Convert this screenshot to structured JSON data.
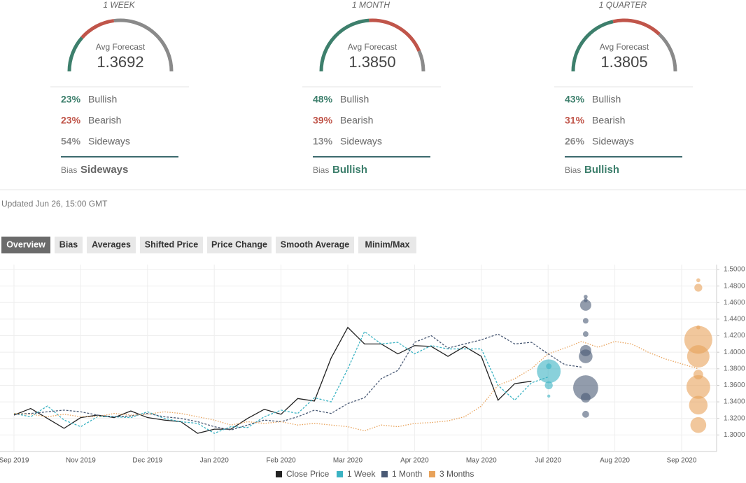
{
  "cards": [
    {
      "period": "1 WEEK",
      "avg_label": "Avg Forecast",
      "avg": "1.3692",
      "labels": [
        "Bullish",
        "Bearish",
        "Sideways"
      ],
      "values": [
        23,
        23,
        54
      ],
      "value_labels": [
        "23%",
        "23%",
        "54%"
      ],
      "colors": [
        "#3d7f6c",
        "#c0554a",
        "#8a8a8a"
      ],
      "bias_label": "Bias",
      "bias": "Sideways"
    },
    {
      "period": "1 MONTH",
      "avg_label": "Avg Forecast",
      "avg": "1.3850",
      "labels": [
        "Bullish",
        "Bearish",
        "Sideways"
      ],
      "values": [
        48,
        39,
        13
      ],
      "value_labels": [
        "48%",
        "39%",
        "13%"
      ],
      "colors": [
        "#3d7f6c",
        "#c0554a",
        "#8a8a8a"
      ],
      "bias_label": "Bias",
      "bias": "Bullish"
    },
    {
      "period": "1 QUARTER",
      "avg_label": "Avg Forecast",
      "avg": "1.3805",
      "labels": [
        "Bullish",
        "Bearish",
        "Sideways"
      ],
      "values": [
        43,
        31,
        26
      ],
      "value_labels": [
        "43%",
        "31%",
        "26%"
      ],
      "colors": [
        "#3d7f6c",
        "#c0554a",
        "#8a8a8a"
      ],
      "bias_label": "Bias",
      "bias": "Bullish"
    }
  ],
  "updated": "Updated Jun 26, 15:00 GMT",
  "tabs": [
    "Overview",
    "Bias",
    "Averages",
    "Shifted Price",
    "Price Change",
    "Smooth Average",
    "Minim/Max"
  ],
  "active_tab": 0,
  "chart_data": {
    "type": "line",
    "categories": [
      "Sep 2019",
      null,
      null,
      null,
      "Nov 2019",
      null,
      null,
      null,
      "Dec 2019",
      null,
      null,
      null,
      "Jan 2020",
      null,
      null,
      null,
      "Feb 2020",
      null,
      null,
      null,
      "Mar 2020",
      null,
      null,
      null,
      "Apr 2020",
      null,
      null,
      null,
      "May 2020",
      null,
      null,
      null,
      "Jul 2020",
      null,
      null,
      null,
      "Aug 2020",
      null,
      null,
      null,
      "Sep 2020",
      null,
      null
    ],
    "ylim": [
      1.28,
      1.5
    ],
    "yticks": [
      {
        "value": 1.3,
        "label": "1.3000"
      },
      {
        "value": 1.32,
        "label": "1.3200"
      },
      {
        "value": 1.34,
        "label": "1.3400"
      },
      {
        "value": 1.36,
        "label": "1.3600"
      },
      {
        "value": 1.38,
        "label": "1.3800"
      },
      {
        "value": 1.4,
        "label": "1.4000"
      },
      {
        "value": 1.42,
        "label": "1.4200"
      },
      {
        "value": 1.44,
        "label": "1.4400"
      },
      {
        "value": 1.46,
        "label": "1.4600"
      },
      {
        "value": 1.48,
        "label": "1.4800"
      },
      {
        "value": 1.5,
        "label": "1.5000"
      }
    ],
    "grid": true,
    "series": [
      {
        "name": "Close Price",
        "color": "#222222",
        "line_style": "solid",
        "values": [
          1.324,
          1.332,
          1.32,
          1.308,
          1.321,
          1.324,
          1.321,
          1.329,
          1.321,
          1.318,
          1.316,
          1.302,
          1.307,
          1.307,
          1.32,
          1.331,
          1.325,
          1.344,
          1.341,
          1.393,
          1.43,
          1.41,
          1.41,
          1.398,
          1.408,
          1.407,
          1.395,
          1.407,
          1.395,
          1.342,
          1.362,
          1.365,
          null,
          null,
          null,
          null,
          null,
          null,
          null,
          null,
          null,
          null,
          null
        ]
      },
      {
        "name": "1 Week",
        "color": "#3bb3c3",
        "line_style": "dashed",
        "values": [
          1.326,
          1.322,
          1.335,
          1.318,
          1.31,
          1.322,
          1.322,
          1.321,
          1.328,
          1.32,
          1.316,
          1.314,
          1.302,
          1.31,
          1.309,
          1.322,
          1.33,
          1.326,
          1.345,
          1.34,
          1.38,
          1.425,
          1.41,
          1.412,
          1.398,
          1.408,
          1.404,
          1.404,
          1.404,
          1.36,
          1.342,
          1.363,
          1.37,
          null,
          null,
          null,
          null,
          null,
          null,
          null,
          null,
          null,
          null
        ],
        "points": [
          {
            "value": 1.377,
            "count": 18
          },
          {
            "value": 1.36,
            "count": 2
          },
          {
            "value": 1.383,
            "count": 1
          },
          {
            "value": 1.347,
            "count": 0.3
          }
        ]
      },
      {
        "name": "1 Month",
        "color": "#4a5a75",
        "line_style": "dashed",
        "values": [
          1.325,
          1.326,
          1.328,
          1.33,
          1.328,
          1.324,
          1.322,
          1.323,
          1.326,
          1.322,
          1.32,
          1.316,
          1.31,
          1.306,
          1.312,
          1.318,
          1.316,
          1.322,
          1.33,
          1.326,
          1.338,
          1.345,
          1.368,
          1.378,
          1.412,
          1.42,
          1.405,
          1.41,
          1.415,
          1.422,
          1.41,
          1.412,
          1.398,
          1.385,
          1.382,
          null,
          null,
          null,
          null,
          null,
          null,
          null,
          null
        ],
        "points": [
          {
            "value": 1.467,
            "count": 0.5
          },
          {
            "value": 1.463,
            "count": 0.5
          },
          {
            "value": 1.457,
            "count": 4
          },
          {
            "value": 1.438,
            "count": 1
          },
          {
            "value": 1.422,
            "count": 1
          },
          {
            "value": 1.402,
            "count": 4
          },
          {
            "value": 1.395,
            "count": 6
          },
          {
            "value": 1.357,
            "count": 20
          },
          {
            "value": 1.345,
            "count": 3
          },
          {
            "value": 1.325,
            "count": 1.5
          }
        ]
      },
      {
        "name": "3 Months",
        "color": "#e8a25a",
        "line_style": "dotted",
        "values": [
          1.326,
          1.325,
          1.322,
          1.325,
          1.322,
          1.322,
          1.326,
          1.324,
          1.325,
          1.328,
          1.326,
          1.322,
          1.318,
          1.312,
          1.316,
          1.314,
          1.316,
          1.312,
          1.314,
          1.312,
          1.31,
          1.305,
          1.312,
          1.31,
          1.314,
          1.315,
          1.317,
          1.322,
          1.335,
          1.36,
          1.368,
          1.38,
          1.398,
          1.405,
          1.413,
          1.406,
          1.413,
          1.41,
          1.4,
          1.392,
          1.386,
          1.38,
          null
        ],
        "points": [
          {
            "value": 1.487,
            "count": 0.5
          },
          {
            "value": 1.478,
            "count": 2
          },
          {
            "value": 1.43,
            "count": 0.5
          },
          {
            "value": 1.415,
            "count": 25
          },
          {
            "value": 1.395,
            "count": 16
          },
          {
            "value": 1.373,
            "count": 3
          },
          {
            "value": 1.358,
            "count": 18
          },
          {
            "value": 1.336,
            "count": 11
          },
          {
            "value": 1.312,
            "count": 8
          }
        ]
      }
    ]
  }
}
